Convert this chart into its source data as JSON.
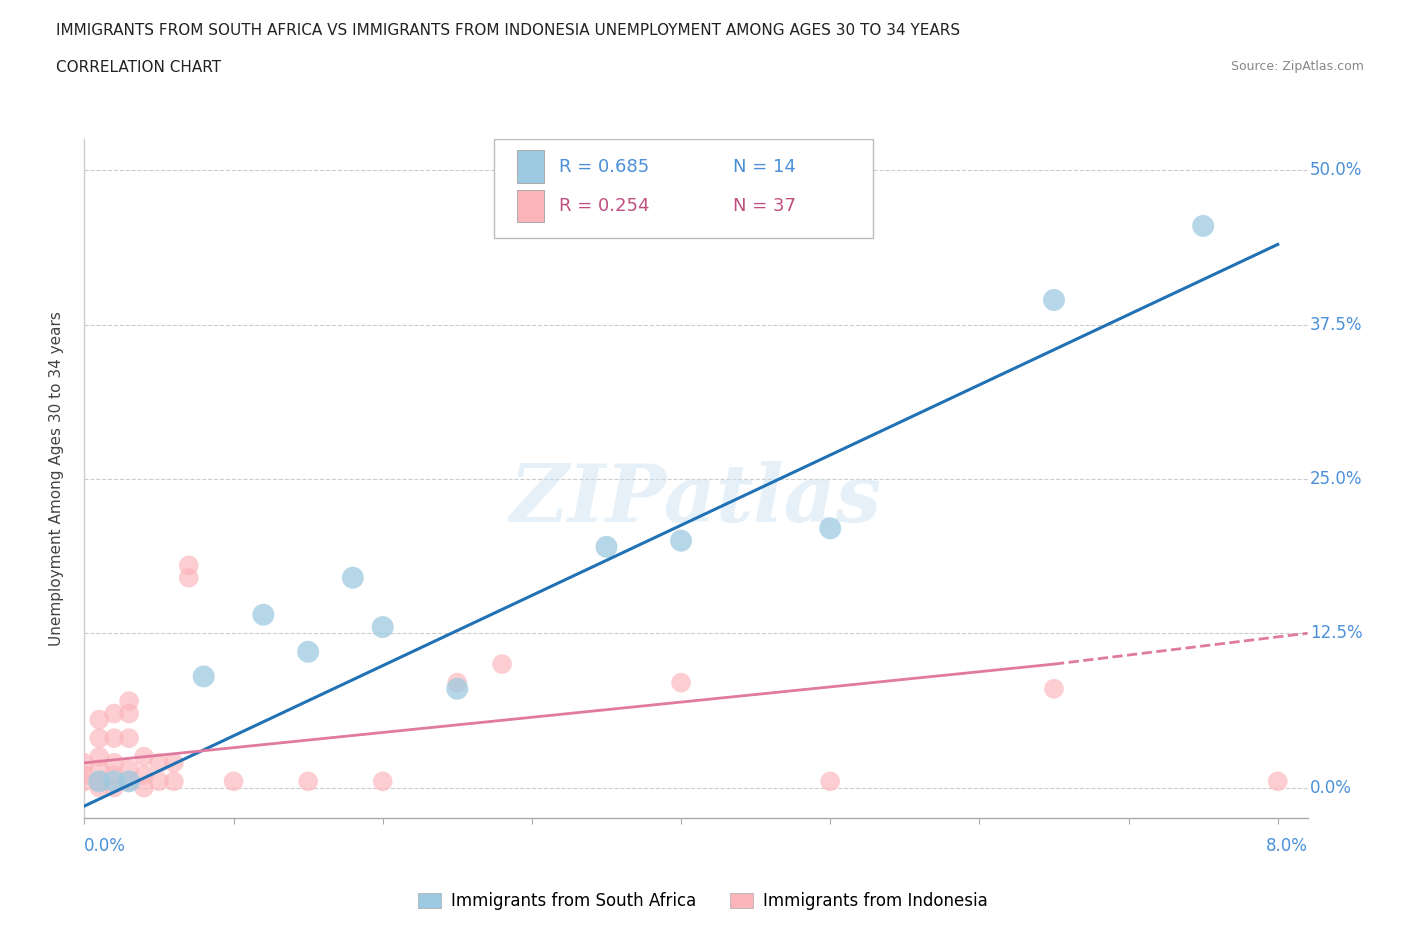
{
  "title_line1": "IMMIGRANTS FROM SOUTH AFRICA VS IMMIGRANTS FROM INDONESIA UNEMPLOYMENT AMONG AGES 30 TO 34 YEARS",
  "title_line2": "CORRELATION CHART",
  "source": "Source: ZipAtlas.com",
  "ylabel": "Unemployment Among Ages 30 to 34 years",
  "ytick_vals": [
    0.0,
    0.125,
    0.25,
    0.375,
    0.5
  ],
  "ytick_labels": [
    "",
    "12.5%",
    "25.0%",
    "37.5%",
    "50.0%"
  ],
  "ytick_labels_right": [
    "0.0%",
    "12.5%",
    "25.0%",
    "37.5%",
    "50.0%"
  ],
  "watermark": "ZIPatlas",
  "blue_color": "#9ecae1",
  "pink_color": "#fbb4b9",
  "blue_line_color": "#2171b5",
  "pink_line_color": "#e07a9e",
  "blue_scatter": [
    [
      0.001,
      0.005
    ],
    [
      0.002,
      0.005
    ],
    [
      0.003,
      0.005
    ],
    [
      0.008,
      0.09
    ],
    [
      0.012,
      0.14
    ],
    [
      0.015,
      0.11
    ],
    [
      0.018,
      0.17
    ],
    [
      0.02,
      0.13
    ],
    [
      0.025,
      0.08
    ],
    [
      0.035,
      0.195
    ],
    [
      0.04,
      0.2
    ],
    [
      0.05,
      0.21
    ],
    [
      0.065,
      0.395
    ],
    [
      0.075,
      0.455
    ]
  ],
  "pink_scatter": [
    [
      0.0,
      0.005
    ],
    [
      0.0,
      0.01
    ],
    [
      0.0,
      0.02
    ],
    [
      0.001,
      0.0
    ],
    [
      0.001,
      0.005
    ],
    [
      0.001,
      0.015
    ],
    [
      0.001,
      0.025
    ],
    [
      0.001,
      0.04
    ],
    [
      0.001,
      0.055
    ],
    [
      0.002,
      0.0
    ],
    [
      0.002,
      0.01
    ],
    [
      0.002,
      0.02
    ],
    [
      0.002,
      0.04
    ],
    [
      0.002,
      0.06
    ],
    [
      0.003,
      0.005
    ],
    [
      0.003,
      0.015
    ],
    [
      0.003,
      0.04
    ],
    [
      0.003,
      0.06
    ],
    [
      0.003,
      0.07
    ],
    [
      0.004,
      0.0
    ],
    [
      0.004,
      0.01
    ],
    [
      0.004,
      0.025
    ],
    [
      0.005,
      0.005
    ],
    [
      0.005,
      0.02
    ],
    [
      0.006,
      0.005
    ],
    [
      0.006,
      0.02
    ],
    [
      0.007,
      0.17
    ],
    [
      0.007,
      0.18
    ],
    [
      0.01,
      0.005
    ],
    [
      0.015,
      0.005
    ],
    [
      0.02,
      0.005
    ],
    [
      0.025,
      0.085
    ],
    [
      0.028,
      0.1
    ],
    [
      0.04,
      0.085
    ],
    [
      0.05,
      0.005
    ],
    [
      0.065,
      0.08
    ],
    [
      0.08,
      0.005
    ]
  ],
  "xlim": [
    0.0,
    0.082
  ],
  "ylim": [
    -0.025,
    0.525
  ],
  "blue_trendline": [
    [
      0.0,
      -0.015
    ],
    [
      0.08,
      0.44
    ]
  ],
  "pink_trendline_solid": [
    [
      0.0,
      0.02
    ],
    [
      0.065,
      0.1
    ]
  ],
  "pink_trendline_dashed": [
    [
      0.065,
      0.1
    ],
    [
      0.082,
      0.125
    ]
  ]
}
